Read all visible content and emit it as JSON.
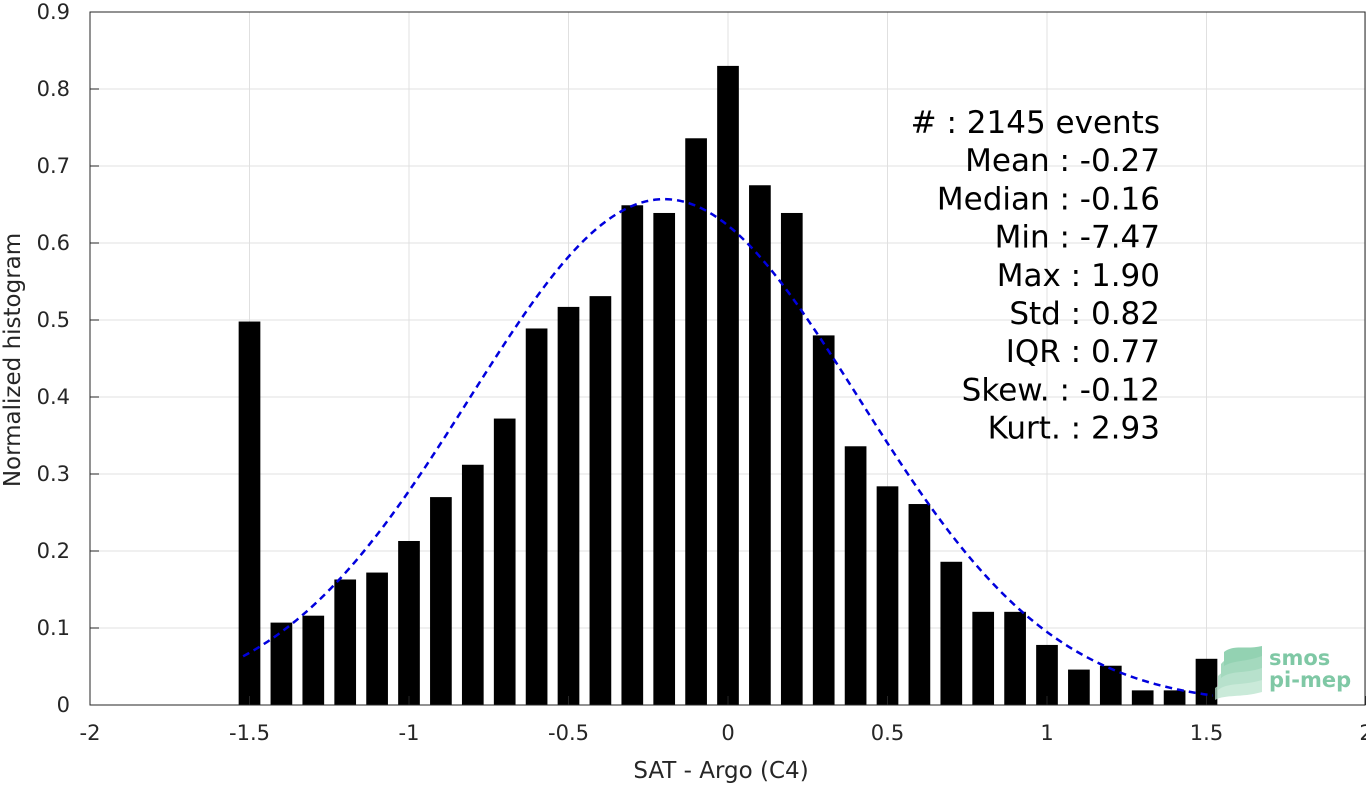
{
  "chart_data": {
    "type": "bar",
    "xlabel": "SAT - Argo (C4)",
    "ylabel": "Normalized histogram",
    "xlim": [
      -2,
      2
    ],
    "ylim": [
      0,
      0.9
    ],
    "xticks": [
      -2,
      -1.5,
      -1,
      -0.5,
      0,
      0.5,
      1,
      1.5,
      2
    ],
    "xtick_labels": [
      "-2",
      "-1.5",
      "-1",
      "-0.5",
      "0",
      "0.5",
      "1",
      "1.5",
      "2"
    ],
    "yticks": [
      0,
      0.1,
      0.2,
      0.3,
      0.4,
      0.5,
      0.6,
      0.7,
      0.8,
      0.9
    ],
    "ytick_labels": [
      "0",
      "0.1",
      "0.2",
      "0.3",
      "0.4",
      "0.5",
      "0.6",
      "0.7",
      "0.8",
      "0.9"
    ],
    "grid": true,
    "bar_color": "#000000",
    "curve_color": "#0000dd",
    "bars": {
      "x": [
        -1.5,
        -1.4,
        -1.3,
        -1.2,
        -1.1,
        -1.0,
        -0.9,
        -0.8,
        -0.7,
        -0.6,
        -0.5,
        -0.4,
        -0.3,
        -0.2,
        -0.1,
        0.0,
        0.1,
        0.2,
        0.3,
        0.4,
        0.5,
        0.6,
        0.7,
        0.8,
        0.9,
        1.0,
        1.1,
        1.2,
        1.3,
        1.4,
        1.5
      ],
      "values": [
        0.498,
        0.107,
        0.116,
        0.163,
        0.172,
        0.213,
        0.27,
        0.312,
        0.372,
        0.489,
        0.517,
        0.531,
        0.649,
        0.639,
        0.736,
        0.83,
        0.675,
        0.639,
        0.48,
        0.336,
        0.284,
        0.261,
        0.186,
        0.121,
        0.121,
        0.078,
        0.046,
        0.051,
        0.019,
        0.019,
        0.06
      ]
    },
    "fit_curve": {
      "style": "dashed",
      "mean": -0.2,
      "std": 0.61,
      "peak": 0.657,
      "x_range": [
        -1.52,
        1.52
      ]
    },
    "stats": [
      "#  : 2145 events",
      "Mean : -0.27",
      "Median : -0.16",
      "Min : -7.47",
      "Max : 1.90",
      "Std : 0.82",
      "IQR : 0.77",
      "Skew. : -0.12",
      "Kurt. : 2.93"
    ]
  },
  "logo": {
    "line1": "smos",
    "line2": "pi-mep",
    "color": "#7fc8a5"
  }
}
